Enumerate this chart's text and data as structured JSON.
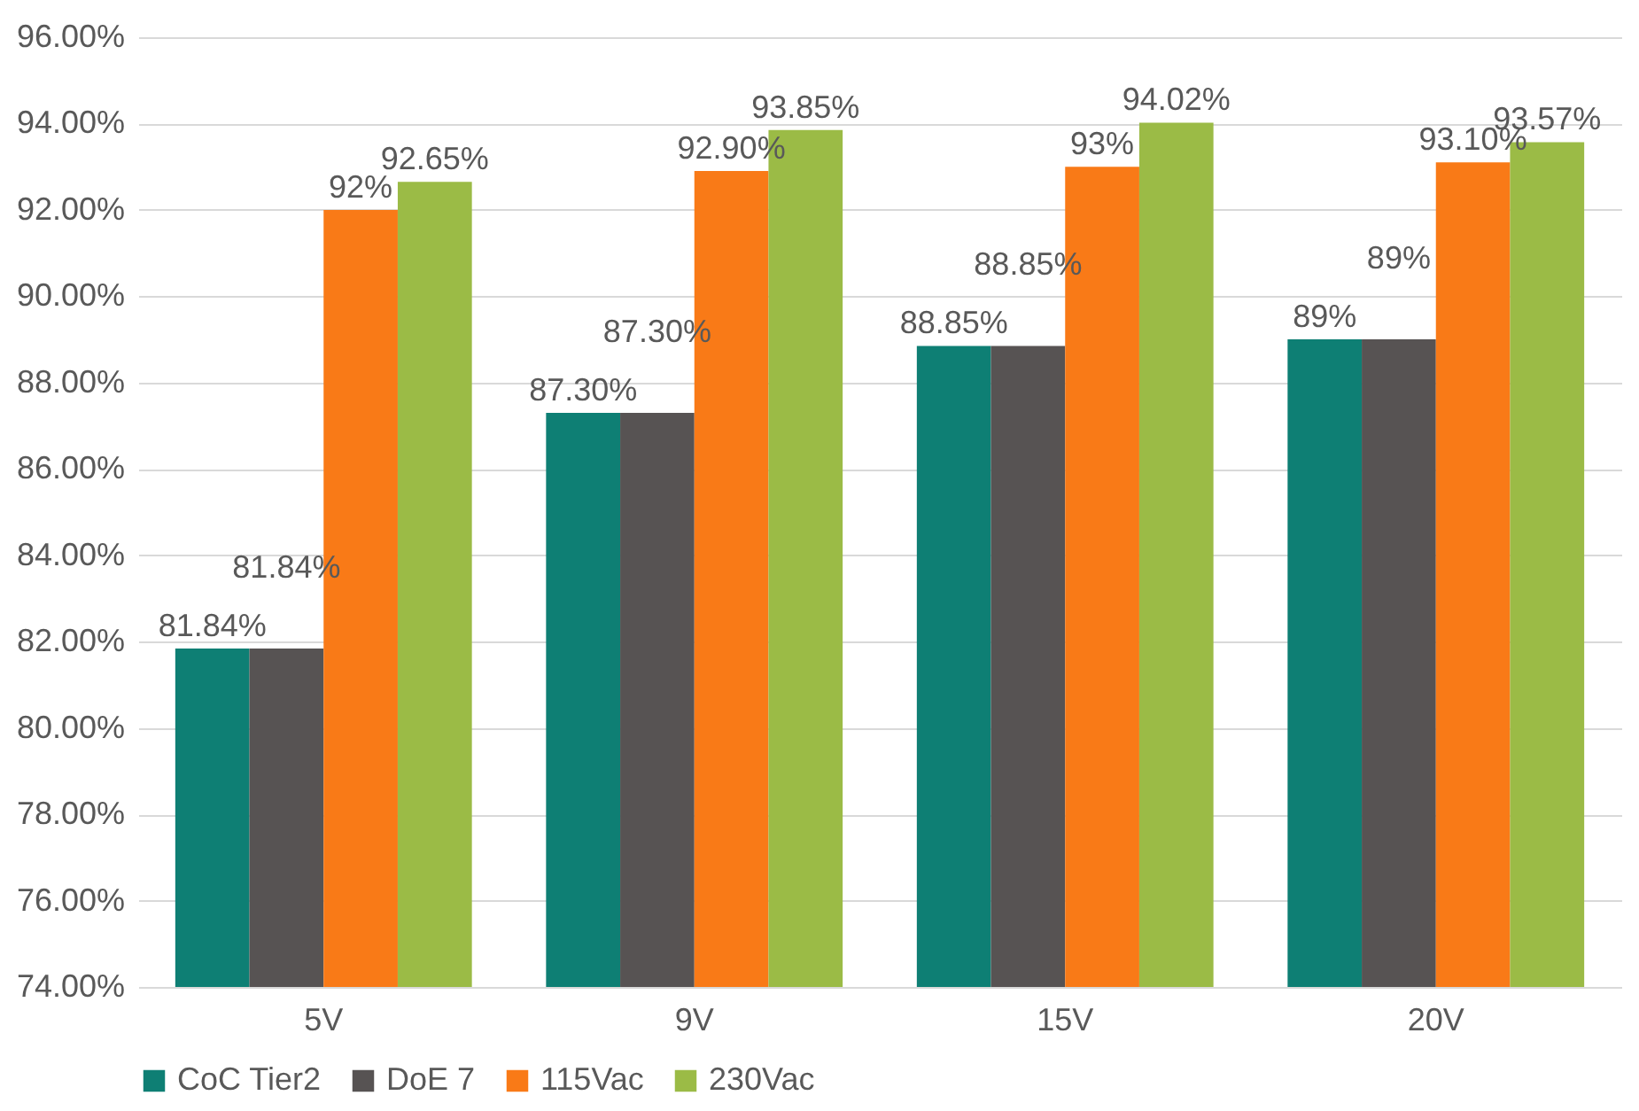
{
  "chart_data": {
    "type": "bar",
    "categories": [
      "5V",
      "9V",
      "15V",
      "20V"
    ],
    "series": [
      {
        "name": "CoC Tier2",
        "color": "#0e7f74",
        "values": [
          81.84,
          87.3,
          88.85,
          89
        ],
        "value_labels": [
          "81.84%",
          "87.30%",
          "88.85%",
          "89%"
        ]
      },
      {
        "name": "DoE 7",
        "color": "#575353",
        "values": [
          81.84,
          87.3,
          88.85,
          89
        ],
        "value_labels": [
          "81.84%",
          "87.30%",
          "88.85%",
          "89%"
        ]
      },
      {
        "name": "115Vac",
        "color": "#f97a17",
        "values": [
          92,
          92.9,
          93,
          93.1
        ],
        "value_labels": [
          "92%",
          "92.90%",
          "93%",
          "93.10%"
        ]
      },
      {
        "name": "230Vac",
        "color": "#9bbb46",
        "values": [
          92.65,
          93.85,
          94.02,
          93.57
        ],
        "value_labels": [
          "92.65%",
          "93.85%",
          "94.02%",
          "93.57%"
        ]
      }
    ],
    "ylim": [
      74,
      96
    ],
    "yticks": [
      {
        "value": 74,
        "label": "74.00%"
      },
      {
        "value": 76,
        "label": "76.00%"
      },
      {
        "value": 78,
        "label": "78.00%"
      },
      {
        "value": 80,
        "label": "80.00%"
      },
      {
        "value": 82,
        "label": "82.00%"
      },
      {
        "value": 84,
        "label": "84.00%"
      },
      {
        "value": 86,
        "label": "86.00%"
      },
      {
        "value": 88,
        "label": "88.00%"
      },
      {
        "value": 90,
        "label": "90.00%"
      },
      {
        "value": 92,
        "label": "92.00%"
      },
      {
        "value": 94,
        "label": "94.00%"
      },
      {
        "value": 96,
        "label": "96.00%"
      }
    ],
    "grid": "y",
    "legend": "bottom"
  }
}
